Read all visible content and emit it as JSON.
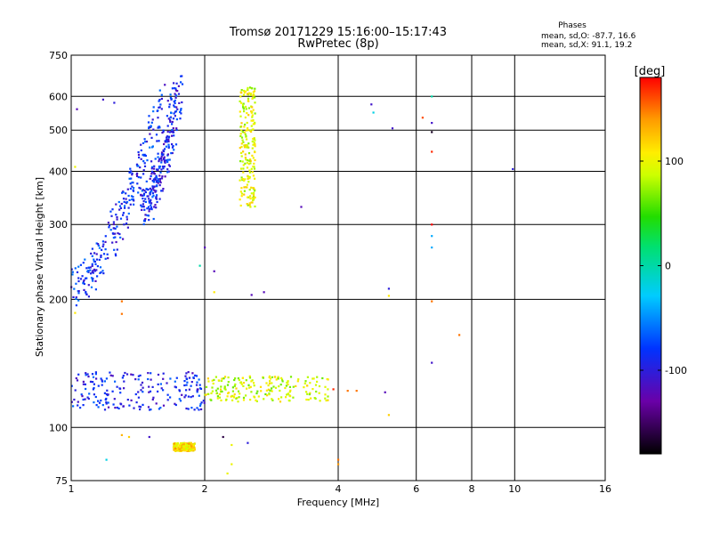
{
  "chart_data": {
    "type": "scatter",
    "title": "Tromsø 20171229 15:16:00–15:17:43",
    "subtitle": "RwPretec (8p)",
    "xlabel": "Frequency [MHz]",
    "ylabel": "Stationary phase Virtual Height [km]",
    "x_scale": "log",
    "y_scale": "log",
    "xlim": [
      1,
      16
    ],
    "ylim": [
      75,
      750
    ],
    "x_ticks": [
      1,
      2,
      4,
      6,
      8,
      10,
      16
    ],
    "x_tick_labels": [
      "1",
      "2",
      "4",
      "6",
      "8",
      "10",
      "16"
    ],
    "y_ticks": [
      75,
      100,
      200,
      300,
      400,
      500,
      600,
      750
    ],
    "y_tick_labels": [
      "75",
      "100",
      "200",
      "300",
      "400",
      "500",
      "600",
      "750"
    ],
    "grid": true,
    "phase_stats": {
      "title": "Phases",
      "line_o": "mean, sd,O: -87.7, 16.6",
      "line_x": "mean, sd,X:  91.1, 19.2"
    },
    "colorbar": {
      "label": "[deg]",
      "min": -180,
      "max": 180,
      "ticks": [
        100,
        0,
        -100
      ],
      "tick_labels": [
        "100",
        "0",
        "-100"
      ]
    },
    "clusters": [
      {
        "name": "o-mode F trace",
        "x_start": 1.0,
        "x_end": 1.6,
        "y_start": 215,
        "y_end": 590,
        "phase": -85
      },
      {
        "name": "o-mode F upper",
        "x_start": 1.45,
        "x_end": 1.75,
        "y_start": 330,
        "y_end": 630,
        "phase": -90
      },
      {
        "name": "x-mode F trace",
        "x_min": 2.4,
        "x_max": 2.6,
        "y_min": 330,
        "y_max": 630,
        "phase": 95
      },
      {
        "name": "E-region low",
        "x_min": 1.0,
        "x_max": 2.0,
        "y_min": 110,
        "y_max": 135,
        "phase": -90
      },
      {
        "name": "E-region high",
        "x_min": 2.0,
        "x_max": 3.8,
        "y_min": 115,
        "y_max": 132,
        "phase": 90
      },
      {
        "name": "Es trace",
        "x_min": 1.7,
        "x_max": 1.9,
        "y_min": 88,
        "y_max": 92,
        "phase": 115
      }
    ],
    "isolated_points": [
      {
        "x": 1.03,
        "y": 560,
        "phase": -120
      },
      {
        "x": 1.18,
        "y": 590,
        "phase": -110
      },
      {
        "x": 1.25,
        "y": 580,
        "phase": -100
      },
      {
        "x": 4.75,
        "y": 575,
        "phase": -110
      },
      {
        "x": 4.8,
        "y": 550,
        "phase": -20
      },
      {
        "x": 5.3,
        "y": 505,
        "phase": -110
      },
      {
        "x": 6.2,
        "y": 535,
        "phase": 160
      },
      {
        "x": 6.5,
        "y": 600,
        "phase": 0
      },
      {
        "x": 6.5,
        "y": 520,
        "phase": -110
      },
      {
        "x": 6.5,
        "y": 495,
        "phase": -170
      },
      {
        "x": 6.5,
        "y": 445,
        "phase": 170
      },
      {
        "x": 6.5,
        "y": 300,
        "phase": 180
      },
      {
        "x": 6.5,
        "y": 282,
        "phase": -40
      },
      {
        "x": 6.5,
        "y": 265,
        "phase": -40
      },
      {
        "x": 6.5,
        "y": 198,
        "phase": 150
      },
      {
        "x": 6.5,
        "y": 142,
        "phase": -110
      },
      {
        "x": 9.9,
        "y": 405,
        "phase": -100
      },
      {
        "x": 7.5,
        "y": 165,
        "phase": 150
      },
      {
        "x": 5.2,
        "y": 212,
        "phase": -100
      },
      {
        "x": 5.2,
        "y": 204,
        "phase": 110
      },
      {
        "x": 3.3,
        "y": 330,
        "phase": -120
      },
      {
        "x": 2.72,
        "y": 208,
        "phase": -120
      },
      {
        "x": 2.55,
        "y": 205,
        "phase": -120
      },
      {
        "x": 2.1,
        "y": 233,
        "phase": -120
      },
      {
        "x": 2.1,
        "y": 208,
        "phase": 110
      },
      {
        "x": 2.0,
        "y": 265,
        "phase": -120
      },
      {
        "x": 1.95,
        "y": 240,
        "phase": 0
      },
      {
        "x": 1.3,
        "y": 198,
        "phase": 150
      },
      {
        "x": 1.3,
        "y": 185,
        "phase": 150
      },
      {
        "x": 1.02,
        "y": 186,
        "phase": 110
      },
      {
        "x": 1.02,
        "y": 410,
        "phase": 100
      },
      {
        "x": 1.3,
        "y": 96,
        "phase": 130
      },
      {
        "x": 1.35,
        "y": 95,
        "phase": 120
      },
      {
        "x": 1.5,
        "y": 95,
        "phase": -110
      },
      {
        "x": 2.2,
        "y": 95,
        "phase": -160
      },
      {
        "x": 2.3,
        "y": 91,
        "phase": 100
      },
      {
        "x": 2.5,
        "y": 92,
        "phase": -100
      },
      {
        "x": 2.3,
        "y": 82,
        "phase": 100
      },
      {
        "x": 2.25,
        "y": 78,
        "phase": 100
      },
      {
        "x": 1.2,
        "y": 84,
        "phase": -20
      },
      {
        "x": 4.0,
        "y": 84,
        "phase": 150
      },
      {
        "x": 4.0,
        "y": 82,
        "phase": 140
      },
      {
        "x": 5.2,
        "y": 107,
        "phase": 120
      },
      {
        "x": 5.1,
        "y": 121,
        "phase": -120
      },
      {
        "x": 4.4,
        "y": 122,
        "phase": 150
      },
      {
        "x": 4.2,
        "y": 122,
        "phase": 150
      },
      {
        "x": 3.9,
        "y": 123,
        "phase": 170
      }
    ]
  }
}
